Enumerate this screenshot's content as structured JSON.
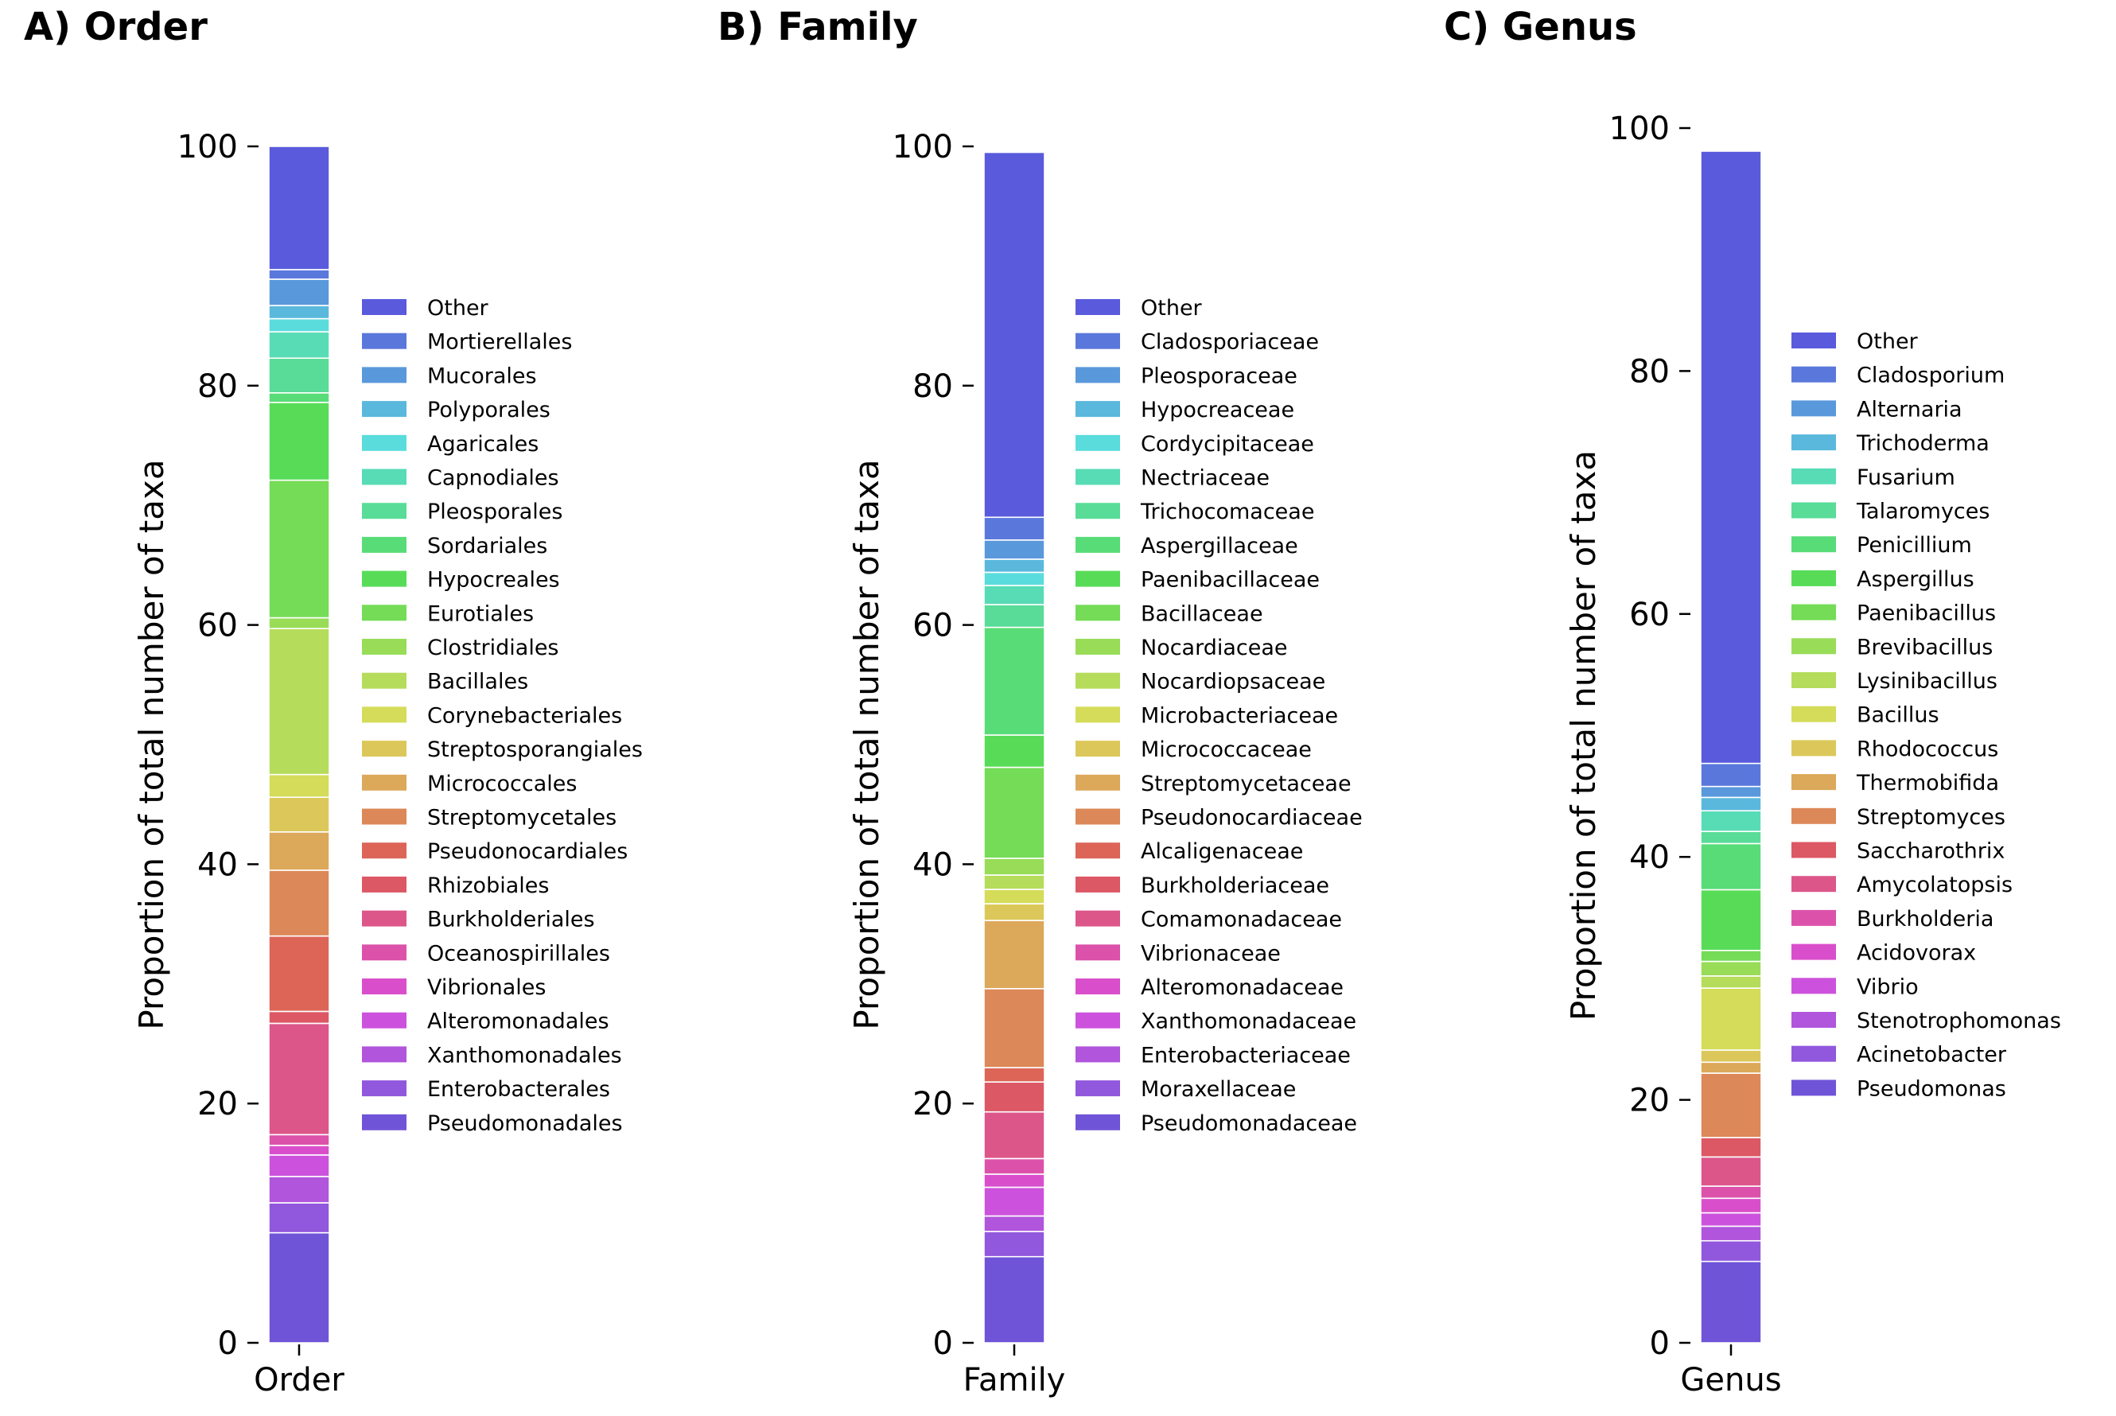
{
  "chart_data": [
    {
      "type": "bar",
      "stacked": true,
      "title": "A) Order",
      "xlabel": "",
      "ylabel": "Proportion of total number of taxa",
      "categories": [
        "Order"
      ],
      "ylim": [
        0,
        100
      ],
      "yticks": [
        "0",
        "20",
        "40",
        "60",
        "80",
        "100"
      ],
      "bar_top": 100,
      "legend_position": "right",
      "series": [
        {
          "name": "Pseudomonadales",
          "value": 9.2,
          "color": "#7054d8"
        },
        {
          "name": "Enterobacterales",
          "value": 2.5,
          "color": "#9157dd"
        },
        {
          "name": "Xanthomonadales",
          "value": 2.2,
          "color": "#b055dc"
        },
        {
          "name": "Alteromonadales",
          "value": 1.8,
          "color": "#cc52dd"
        },
        {
          "name": "Vibrionales",
          "value": 0.8,
          "color": "#d94fcb"
        },
        {
          "name": "Oceanospirillales",
          "value": 0.9,
          "color": "#dc52aa"
        },
        {
          "name": "Burkholderiales",
          "value": 9.3,
          "color": "#dc5689"
        },
        {
          "name": "Rhizobiales",
          "value": 1.0,
          "color": "#dc5865"
        },
        {
          "name": "Pseudonocardiales",
          "value": 6.3,
          "color": "#dc6558"
        },
        {
          "name": "Streptomycetales",
          "value": 5.5,
          "color": "#dc8858"
        },
        {
          "name": "Micrococcales",
          "value": 3.2,
          "color": "#dca85a"
        },
        {
          "name": "Streptosporangiales",
          "value": 2.9,
          "color": "#dcc85a"
        },
        {
          "name": "Corynebacteriales",
          "value": 1.9,
          "color": "#d4dc5a"
        },
        {
          "name": "Bacillales",
          "value": 12.2,
          "color": "#b5dc5a"
        },
        {
          "name": "Clostridiales",
          "value": 0.9,
          "color": "#98dc58"
        },
        {
          "name": "Eurotiales",
          "value": 11.5,
          "color": "#74dc56"
        },
        {
          "name": "Hypocreales",
          "value": 6.5,
          "color": "#58dc58"
        },
        {
          "name": "Sordariales",
          "value": 0.8,
          "color": "#58dc78"
        },
        {
          "name": "Pleosporales",
          "value": 2.9,
          "color": "#58dc98"
        },
        {
          "name": "Capnodiales",
          "value": 2.2,
          "color": "#58dcb6"
        },
        {
          "name": "Agaricales",
          "value": 1.1,
          "color": "#5adcdc"
        },
        {
          "name": "Polyporales",
          "value": 1.1,
          "color": "#5ab8dc"
        },
        {
          "name": "Mucorales",
          "value": 2.2,
          "color": "#5a98dc"
        },
        {
          "name": "Mortierellales",
          "value": 0.8,
          "color": "#5a78dc"
        },
        {
          "name": "Other",
          "value": 10.3,
          "color": "#5a5adc"
        }
      ]
    },
    {
      "type": "bar",
      "stacked": true,
      "title": "B) Family",
      "xlabel": "",
      "ylabel": "Proportion of total number of taxa",
      "categories": [
        "Family"
      ],
      "ylim": [
        0,
        100
      ],
      "yticks": [
        "0",
        "20",
        "40",
        "60",
        "80",
        "100"
      ],
      "bar_top": 100,
      "legend_position": "right",
      "series": [
        {
          "name": "Pseudomonadaceae",
          "value": 7.2,
          "color": "#7054d8"
        },
        {
          "name": "Moraxellaceae",
          "value": 2.1,
          "color": "#9157dd"
        },
        {
          "name": "Enterobacteriaceae",
          "value": 1.3,
          "color": "#b055dc"
        },
        {
          "name": "Xanthomonadaceae",
          "value": 2.4,
          "color": "#cc52dd"
        },
        {
          "name": "Alteromonadaceae",
          "value": 1.1,
          "color": "#d94fcb"
        },
        {
          "name": "Vibrionaceae",
          "value": 1.3,
          "color": "#dc52aa"
        },
        {
          "name": "Comamonadaceae",
          "value": 3.9,
          "color": "#dc5689"
        },
        {
          "name": "Burkholderiaceae",
          "value": 2.5,
          "color": "#dc5865"
        },
        {
          "name": "Alcaligenaceae",
          "value": 1.2,
          "color": "#dc6558"
        },
        {
          "name": "Pseudonocardiaceae",
          "value": 6.6,
          "color": "#dc8858"
        },
        {
          "name": "Streptomycetaceae",
          "value": 5.7,
          "color": "#dca85a"
        },
        {
          "name": "Micrococcaceae",
          "value": 1.4,
          "color": "#dcc85a"
        },
        {
          "name": "Microbacteriaceae",
          "value": 1.2,
          "color": "#d4dc5a"
        },
        {
          "name": "Nocardiopsaceae",
          "value": 1.2,
          "color": "#b5dc5a"
        },
        {
          "name": "Nocardiaceae",
          "value": 1.4,
          "color": "#98dc58"
        },
        {
          "name": "Bacillaceae",
          "value": 7.6,
          "color": "#74dc56"
        },
        {
          "name": "Paenibacillaceae",
          "value": 2.7,
          "color": "#58dc58"
        },
        {
          "name": "Aspergillaceae",
          "value": 9.0,
          "color": "#58dc78"
        },
        {
          "name": "Trichocomaceae",
          "value": 1.9,
          "color": "#58dc98"
        },
        {
          "name": "Nectriaceae",
          "value": 1.6,
          "color": "#58dcb6"
        },
        {
          "name": "Cordycipitaceae",
          "value": 1.1,
          "color": "#5adcdc"
        },
        {
          "name": "Hypocreaceae",
          "value": 1.1,
          "color": "#5ab8dc"
        },
        {
          "name": "Pleosporaceae",
          "value": 1.6,
          "color": "#5a98dc"
        },
        {
          "name": "Cladosporiaceae",
          "value": 1.9,
          "color": "#5a78dc"
        },
        {
          "name": "Other",
          "value": 30.5,
          "color": "#5a5adc"
        }
      ]
    },
    {
      "type": "bar",
      "stacked": true,
      "title": "C) Genus",
      "xlabel": "",
      "ylabel": "Proportion of total number of taxa",
      "categories": [
        "Genus"
      ],
      "ylim": [
        0,
        100
      ],
      "yticks": [
        "0",
        "20",
        "40",
        "60",
        "80",
        "100"
      ],
      "bar_top": 98.3,
      "legend_position": "right",
      "series": [
        {
          "name": "Pseudomonas",
          "value": 6.7,
          "color": "#7054d8"
        },
        {
          "name": "Acinetobacter",
          "value": 1.7,
          "color": "#9157dd"
        },
        {
          "name": "Stenotrophomonas",
          "value": 1.2,
          "color": "#b055dc"
        },
        {
          "name": "Vibrio",
          "value": 1.1,
          "color": "#cc52dd"
        },
        {
          "name": "Acidovorax",
          "value": 1.2,
          "color": "#d94fcb"
        },
        {
          "name": "Burkholderia",
          "value": 1.0,
          "color": "#dc52aa"
        },
        {
          "name": "Amycolatopsis",
          "value": 2.4,
          "color": "#dc5689"
        },
        {
          "name": "Saccharothrix",
          "value": 1.6,
          "color": "#dc5865"
        },
        {
          "name": "Streptomyces",
          "value": 5.3,
          "color": "#dc8858"
        },
        {
          "name": "Thermobifida",
          "value": 0.9,
          "color": "#dca85a"
        },
        {
          "name": "Rhodococcus",
          "value": 1.0,
          "color": "#dcc85a"
        },
        {
          "name": "Bacillus",
          "value": 5.1,
          "color": "#d4dc5a"
        },
        {
          "name": "Lysinibacillus",
          "value": 1.0,
          "color": "#b5dc5a"
        },
        {
          "name": "Brevibacillus",
          "value": 1.2,
          "color": "#98dc58"
        },
        {
          "name": "Paenibacillus",
          "value": 0.9,
          "color": "#74dc56"
        },
        {
          "name": "Aspergillus",
          "value": 5.0,
          "color": "#58dc58"
        },
        {
          "name": "Penicillium",
          "value": 3.8,
          "color": "#58dc78"
        },
        {
          "name": "Talaromyces",
          "value": 1.0,
          "color": "#58dc98"
        },
        {
          "name": "Fusarium",
          "value": 1.7,
          "color": "#58dcb6"
        },
        {
          "name": "Trichoderma",
          "value": 1.1,
          "color": "#5ab8dc"
        },
        {
          "name": "Alternaria",
          "value": 0.9,
          "color": "#5a98dc"
        },
        {
          "name": "Cladosporium",
          "value": 1.9,
          "color": "#5a78dc"
        },
        {
          "name": "Other",
          "value": 50.4,
          "color": "#5a5adc"
        }
      ]
    }
  ]
}
